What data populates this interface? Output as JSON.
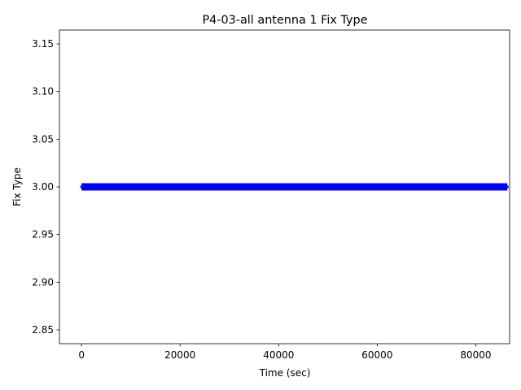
{
  "chart_data": {
    "type": "line",
    "title": "P4-03-all antenna 1 Fix Type",
    "x_label": "Time (sec)",
    "y_label": "Fix Type",
    "x": [
      0,
      86400
    ],
    "series": [
      {
        "name": "Fix Type",
        "color": "#0000ff",
        "values": [
          3,
          3
        ]
      }
    ],
    "xlim": [
      -4483,
      86862
    ],
    "xticks": [
      0,
      20000,
      40000,
      60000,
      80000
    ],
    "ylim": [
      2.8355,
      3.1645
    ],
    "yticks": [
      2.85,
      {
        "value": 2.9,
        "label": "2.90"
      },
      2.95,
      {
        "value": 3,
        "label": "3.00"
      },
      3.05,
      {
        "value": 3.1,
        "label": "3.10"
      },
      3.15
    ]
  }
}
